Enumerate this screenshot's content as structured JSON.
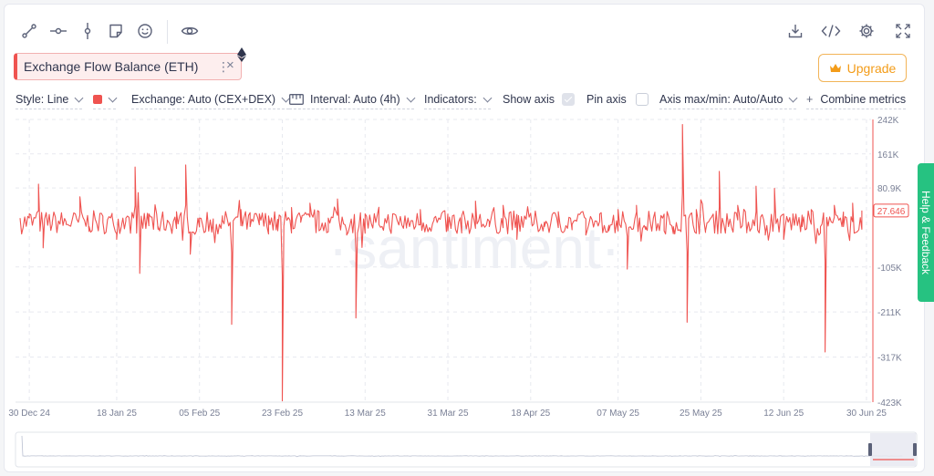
{
  "metric": {
    "name": "Exchange Flow Balance (ETH)",
    "menu_glyph": "⋮",
    "close_glyph": "×"
  },
  "upgrade": {
    "label": "Upgrade",
    "icon": "crown-icon"
  },
  "toolbar": {
    "left_icons": [
      "line-draw-icon",
      "horizontal-line-icon",
      "vertical-line-icon",
      "note-icon",
      "emoji-icon",
      "eye-icon"
    ],
    "right_icons": [
      "download-icon",
      "embed-code-icon",
      "settings-icon",
      "fullscreen-icon"
    ]
  },
  "controls": {
    "style": "Style: Line",
    "color": "#ef5350",
    "exchange": "Exchange: Auto (CEX+DEX)",
    "interval": "Interval: Auto (4h)",
    "indicators": "Indicators:",
    "show_axis": {
      "label": "Show axis",
      "checked": true
    },
    "pin_axis": {
      "label": "Pin axis",
      "checked": false
    },
    "axis_minmax": "Axis max/min: Auto/Auto",
    "combine": "Combine metrics",
    "combine_glyph": "+"
  },
  "watermark": "·santiment·",
  "help_tab": "Help & Feedback",
  "chart_data": {
    "type": "line",
    "series": [
      {
        "name": "Exchange Flow Balance (ETH)",
        "color": "#ef5350",
        "last_value_label": "27.646",
        "points": [
          [
            "2024-12-28",
            10
          ],
          [
            "2024-12-30",
            20
          ],
          [
            "2025-01-01",
            90
          ],
          [
            "2025-01-02",
            -60
          ],
          [
            "2025-01-04",
            0
          ],
          [
            "2025-01-07",
            -5
          ],
          [
            "2025-01-09",
            20
          ],
          [
            "2025-01-10",
            60
          ],
          [
            "2025-01-12",
            -10
          ],
          [
            "2025-01-15",
            0
          ],
          [
            "2025-01-17",
            15
          ],
          [
            "2025-01-18",
            -40
          ],
          [
            "2025-01-20",
            10
          ],
          [
            "2025-01-22",
            130
          ],
          [
            "2025-01-23",
            -120
          ],
          [
            "2025-01-25",
            20
          ],
          [
            "2025-01-27",
            -10
          ],
          [
            "2025-01-29",
            5
          ],
          [
            "2025-01-31",
            25
          ],
          [
            "2025-02-02",
            135
          ],
          [
            "2025-02-03",
            -75
          ],
          [
            "2025-02-05",
            10
          ],
          [
            "2025-02-08",
            -10
          ],
          [
            "2025-02-10",
            5
          ],
          [
            "2025-02-12",
            -240
          ],
          [
            "2025-02-14",
            30
          ],
          [
            "2025-02-16",
            -10
          ],
          [
            "2025-02-18",
            20
          ],
          [
            "2025-02-20",
            15
          ],
          [
            "2025-02-22",
            -20
          ],
          [
            "2025-02-23",
            -420
          ],
          [
            "2025-02-25",
            35
          ],
          [
            "2025-02-27",
            0
          ],
          [
            "2025-03-01",
            45
          ],
          [
            "2025-03-03",
            -20
          ],
          [
            "2025-03-05",
            10
          ],
          [
            "2025-03-07",
            55
          ],
          [
            "2025-03-09",
            -30
          ],
          [
            "2025-03-11",
            -225
          ],
          [
            "2025-03-13",
            20
          ],
          [
            "2025-03-16",
            -5
          ],
          [
            "2025-03-19",
            20
          ],
          [
            "2025-03-22",
            -10
          ],
          [
            "2025-03-25",
            30
          ],
          [
            "2025-03-28",
            10
          ],
          [
            "2025-03-31",
            -20
          ],
          [
            "2025-04-03",
            15
          ],
          [
            "2025-04-06",
            50
          ],
          [
            "2025-04-09",
            -10
          ],
          [
            "2025-04-12",
            40
          ],
          [
            "2025-04-15",
            -40
          ],
          [
            "2025-04-18",
            20
          ],
          [
            "2025-04-21",
            -10
          ],
          [
            "2025-04-24",
            25
          ],
          [
            "2025-04-27",
            -5
          ],
          [
            "2025-04-30",
            -30
          ],
          [
            "2025-05-03",
            20
          ],
          [
            "2025-05-05",
            -20
          ],
          [
            "2025-05-07",
            30
          ],
          [
            "2025-05-09",
            -110
          ],
          [
            "2025-05-11",
            40
          ],
          [
            "2025-05-13",
            -10
          ],
          [
            "2025-05-15",
            20
          ],
          [
            "2025-05-17",
            -20
          ],
          [
            "2025-05-19",
            -10
          ],
          [
            "2025-05-21",
            230
          ],
          [
            "2025-05-22",
            -235
          ],
          [
            "2025-05-24",
            30
          ],
          [
            "2025-05-26",
            -20
          ],
          [
            "2025-05-29",
            120
          ],
          [
            "2025-05-31",
            -10
          ],
          [
            "2025-06-02",
            40
          ],
          [
            "2025-06-04",
            -20
          ],
          [
            "2025-06-06",
            85
          ],
          [
            "2025-06-08",
            -30
          ],
          [
            "2025-06-10",
            80
          ],
          [
            "2025-06-12",
            -40
          ],
          [
            "2025-06-14",
            20
          ],
          [
            "2025-06-16",
            -10
          ],
          [
            "2025-06-18",
            30
          ],
          [
            "2025-06-20",
            -10
          ],
          [
            "2025-06-21",
            -305
          ],
          [
            "2025-06-23",
            40
          ],
          [
            "2025-06-25",
            -10
          ],
          [
            "2025-06-27",
            45
          ],
          [
            "2025-06-29",
            27.646
          ]
        ]
      }
    ],
    "x_ticks": [
      "30 Dec 24",
      "18 Jan 25",
      "05 Feb 25",
      "23 Feb 25",
      "13 Mar 25",
      "31 Mar 25",
      "18 Apr 25",
      "07 May 25",
      "25 May 25",
      "12 Jun 25",
      "30 Jun 25"
    ],
    "y_ticks": [
      "242K",
      "161K",
      "80.9K",
      "-105K",
      "-211K",
      "-317K",
      "-423K"
    ],
    "ylim": [
      -423,
      242
    ],
    "y_unit": "thousands",
    "xlim": [
      "2024-12-27",
      "2025-07-01"
    ],
    "grid": true,
    "axis_side": "right"
  }
}
